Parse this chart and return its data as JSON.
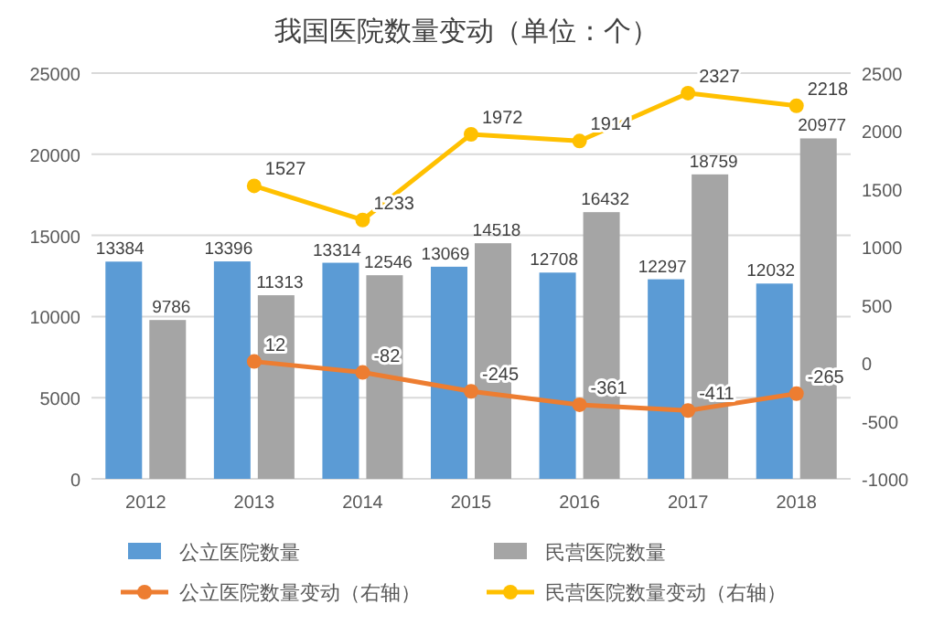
{
  "chart_data": {
    "type": "bar",
    "title": "我国医院数量变动（单位：个）",
    "categories": [
      "2012",
      "2013",
      "2014",
      "2015",
      "2016",
      "2017",
      "2018"
    ],
    "series": [
      {
        "name": "公立医院数量",
        "color": "#5b9bd5",
        "values": [
          13384,
          13396,
          13314,
          13069,
          12708,
          12297,
          12032
        ]
      },
      {
        "name": "民营医院数量",
        "color": "#a5a5a5",
        "values": [
          9786,
          11313,
          12546,
          14518,
          16432,
          18759,
          20977
        ]
      },
      {
        "name": "公立医院数量变动（右轴）",
        "type": "line",
        "axis": "y2",
        "color": "#ed7d31",
        "values": [
          null,
          12,
          -82,
          -245,
          -361,
          -411,
          -265
        ]
      },
      {
        "name": "民营医院数量变动（右轴）",
        "type": "line",
        "axis": "y2",
        "color": "#ffc000",
        "values": [
          null,
          1527,
          1233,
          1972,
          1914,
          2327,
          2218
        ]
      }
    ],
    "ylim": [
      0,
      25000
    ],
    "yticks": [
      0,
      5000,
      10000,
      15000,
      20000,
      25000
    ],
    "y2lim": [
      -1000,
      2500
    ],
    "y2ticks": [
      -1000,
      -500,
      0,
      500,
      1000,
      1500,
      2000,
      2500
    ],
    "grid": "y",
    "legend": "bottom",
    "marker": "circle",
    "line_style": "solid",
    "data_labels": true
  }
}
